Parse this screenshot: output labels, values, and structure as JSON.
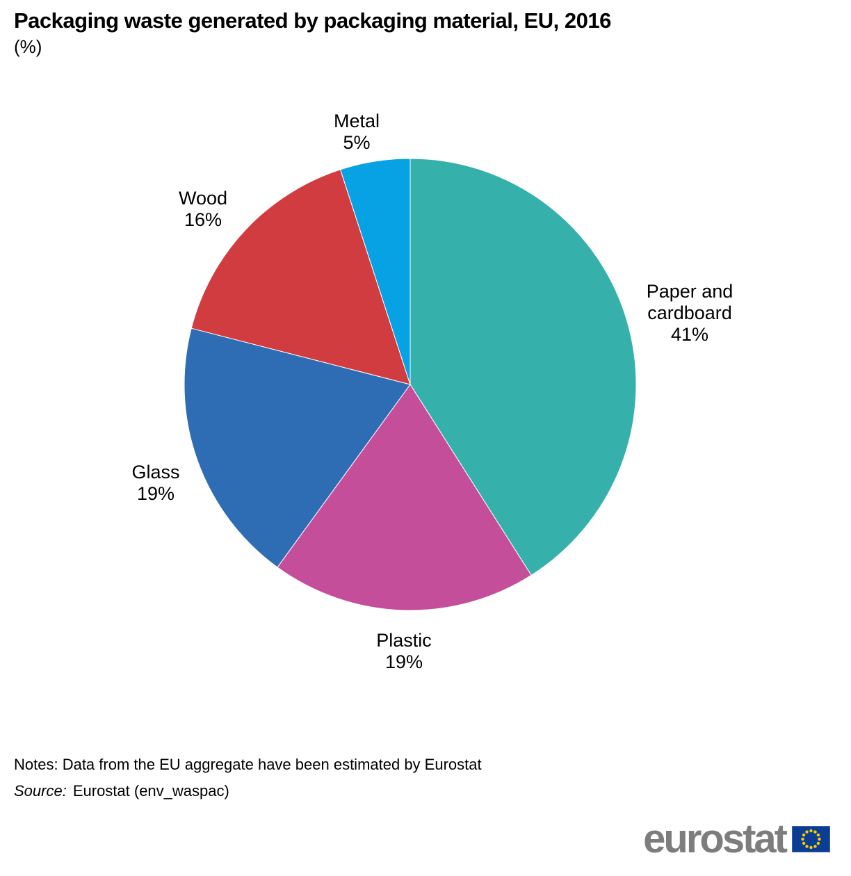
{
  "page": {
    "title": "Packaging waste generated by packaging material, EU, 2016",
    "subtitle": "(%)",
    "notes": "Notes: Data from the EU aggregate have been estimated by Eurostat",
    "source_label": "Source:",
    "source_value": "Eurostat (env_waspac)"
  },
  "logo": {
    "text": "eurostat"
  },
  "chart_data": {
    "type": "pie",
    "title": "Packaging waste generated by packaging material, EU, 2016",
    "unit": "%",
    "categories": [
      "Paper and cardboard",
      "Plastic",
      "Glass",
      "Wood",
      "Metal"
    ],
    "values": [
      41,
      19,
      19,
      16,
      5
    ],
    "colors": [
      "#35b0ab",
      "#c54e9b",
      "#2e6cb4",
      "#d03c40",
      "#06a2e4"
    ],
    "start_angle_deg": 0,
    "direction": "clockwise",
    "legend": "none",
    "labels": [
      {
        "lines": [
          "Paper and",
          "cardboard",
          "41%"
        ]
      },
      {
        "lines": [
          "Plastic",
          "19%"
        ]
      },
      {
        "lines": [
          "Glass",
          "19%"
        ]
      },
      {
        "lines": [
          "Wood",
          "16%"
        ]
      },
      {
        "lines": [
          "Metal",
          "5%"
        ]
      }
    ]
  }
}
